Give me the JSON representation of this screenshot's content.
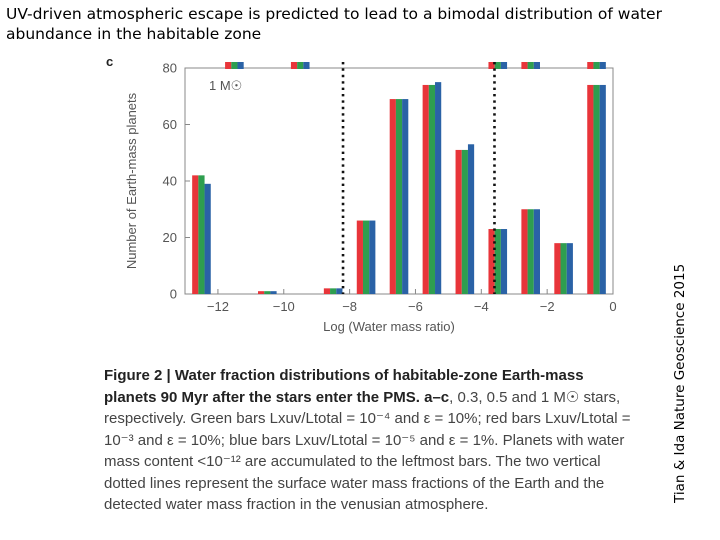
{
  "title": "UV-driven atmospheric escape is predicted to lead to a bimodal distribution of water abundance in the habitable zone",
  "credit": "Tian & Ida Nature Geoscience 2015",
  "panel_label": "c",
  "caption": {
    "label": "Figure 2 | ",
    "bold_text": "Water fraction distributions of habitable-zone Earth-mass planets 90 Myr after the stars enter the PMS. a–c",
    "body": ", 0.3, 0.5 and 1 M☉ stars, respectively. Green bars Lxuv/Ltotal = 10⁻⁴ and ε = 10%; red bars Lxuv/Ltotal = 10⁻³ and ε = 10%; blue bars Lxuv/Ltotal = 10⁻⁵ and ε = 1%. Planets with water mass content <10⁻¹² are accumulated to the leftmost bars. The two vertical dotted lines represent the surface water mass fractions of the Earth and the detected water mass fraction in the venusian atmosphere."
  },
  "colors": {
    "red": "#e8353a",
    "green": "#2e9e4f",
    "blue": "#2a62a6",
    "axis": "#888888",
    "dotted": "#111111"
  },
  "chart_data": {
    "type": "bar",
    "annotation": "1 M☉",
    "xlabel": "Log (Water mass ratio)",
    "ylabel": "Number of Earth-mass planets",
    "xlim": [
      -13,
      0
    ],
    "ylim": [
      0,
      80
    ],
    "xticks": [
      -12,
      -10,
      -8,
      -6,
      -4,
      -2,
      0
    ],
    "yticks": [
      0,
      20,
      40,
      60,
      80
    ],
    "bin_centers": [
      -12.5,
      -11.5,
      -10.5,
      -9.5,
      -8.5,
      -7.5,
      -6.5,
      -5.5,
      -4.5,
      -3.5,
      -2.5,
      -1.5,
      -0.5
    ],
    "series": [
      {
        "name": "red: Lxuv/Ltotal = 1e-3, eps = 10%",
        "color": "red",
        "values": [
          42,
          0,
          1,
          0,
          2,
          26,
          69,
          74,
          51,
          23,
          30,
          18,
          74
        ]
      },
      {
        "name": "green: Lxuv/Ltotal = 1e-4, eps = 10%",
        "color": "green",
        "values": [
          42,
          0,
          1,
          0,
          2,
          26,
          69,
          74,
          51,
          23,
          30,
          18,
          74
        ]
      },
      {
        "name": "blue: Lxuv/Ltotal = 1e-5, eps = 1%",
        "color": "blue",
        "values": [
          39,
          0,
          1,
          0,
          2,
          26,
          69,
          75,
          53,
          23,
          30,
          18,
          74
        ]
      }
    ],
    "clipped_bars_at_top": [
      -11.5,
      -9.5,
      -3.5,
      -2.5,
      -0.5
    ],
    "dotted_lines_x": [
      -8.2,
      -3.6
    ]
  }
}
